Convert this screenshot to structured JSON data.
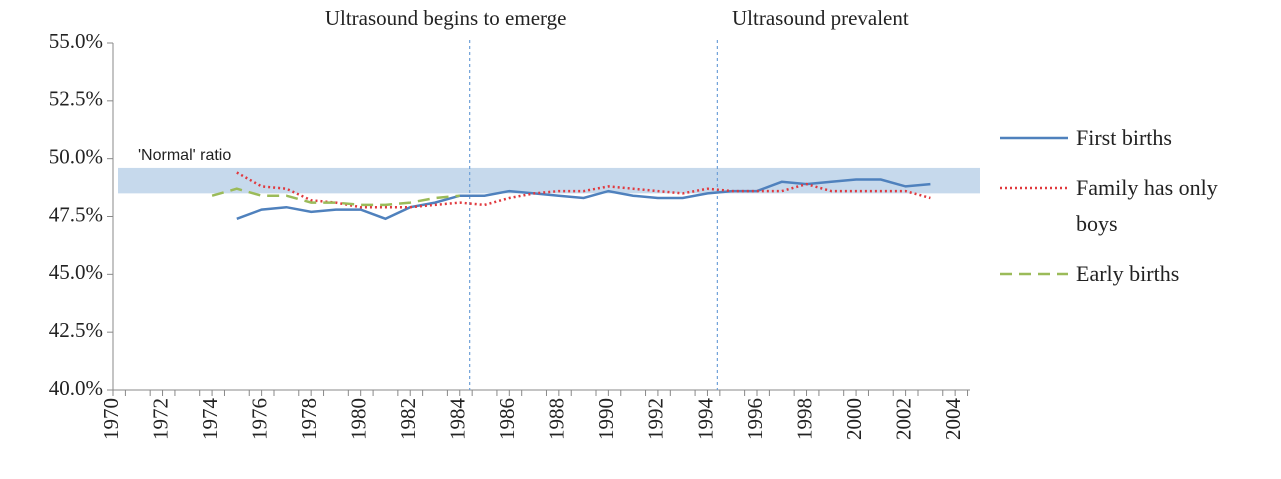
{
  "chart_data": {
    "type": "line",
    "x": [
      1974,
      1975,
      1976,
      1977,
      1978,
      1979,
      1980,
      1981,
      1982,
      1983,
      1984,
      1985,
      1986,
      1987,
      1988,
      1989,
      1990,
      1991,
      1992,
      1993,
      1994,
      1995,
      1996,
      1997,
      1998,
      1999,
      2000,
      2001,
      2002,
      2003
    ],
    "series": [
      {
        "name": "First births",
        "color": "#4f81bd",
        "style": "solid",
        "values": [
          null,
          47.4,
          47.8,
          47.9,
          47.7,
          47.8,
          47.8,
          47.4,
          47.9,
          48.1,
          48.4,
          48.4,
          48.6,
          48.5,
          48.4,
          48.3,
          48.6,
          48.4,
          48.3,
          48.3,
          48.5,
          48.6,
          48.6,
          49.0,
          48.9,
          49.0,
          49.1,
          49.1,
          48.8,
          48.9
        ]
      },
      {
        "name": "Family has only boys",
        "color": "#e0393e",
        "style": "dotted",
        "values": [
          null,
          49.4,
          48.8,
          48.7,
          48.2,
          48.1,
          47.9,
          47.9,
          47.9,
          48.0,
          48.1,
          48.0,
          48.3,
          48.5,
          48.6,
          48.6,
          48.8,
          48.7,
          48.6,
          48.5,
          48.7,
          48.6,
          48.6,
          48.6,
          48.9,
          48.6,
          48.6,
          48.6,
          48.6,
          48.3
        ]
      },
      {
        "name": "Early births",
        "color": "#9bbb59",
        "style": "dashed",
        "values": [
          48.4,
          48.7,
          48.4,
          48.4,
          48.1,
          48.1,
          48.0,
          48.0,
          48.1,
          48.3,
          48.4,
          null,
          null,
          null,
          null,
          null,
          null,
          null,
          null,
          null,
          null,
          null,
          null,
          null,
          null,
          null,
          null,
          null,
          null,
          null
        ]
      }
    ],
    "xlim": [
      1970,
      2004.6
    ],
    "xticks": [
      1970,
      1972,
      1974,
      1976,
      1978,
      1980,
      1982,
      1984,
      1986,
      1988,
      1990,
      1992,
      1994,
      1996,
      1998,
      2000,
      2002,
      2004
    ],
    "ylim": [
      40,
      55
    ],
    "yticks": [
      {
        "value": 40,
        "label": "40.0%"
      },
      {
        "value": 42.5,
        "label": "42.5%"
      },
      {
        "value": 45,
        "label": "45.0%"
      },
      {
        "value": 47.5,
        "label": "47.5%"
      },
      {
        "value": 50,
        "label": "50.0%"
      },
      {
        "value": 52.5,
        "label": "52.5%"
      },
      {
        "value": 55,
        "label": "55.0%"
      }
    ],
    "band": {
      "ymin": 48.5,
      "ymax": 49.6,
      "color": "#c6d9ec",
      "label": "'Normal' ratio"
    },
    "vlines": [
      {
        "x": 1984.4,
        "label": "Ultrasound begins to emerge"
      },
      {
        "x": 1994.4,
        "label": "Ultrasound prevalent"
      }
    ],
    "legend": "right"
  }
}
